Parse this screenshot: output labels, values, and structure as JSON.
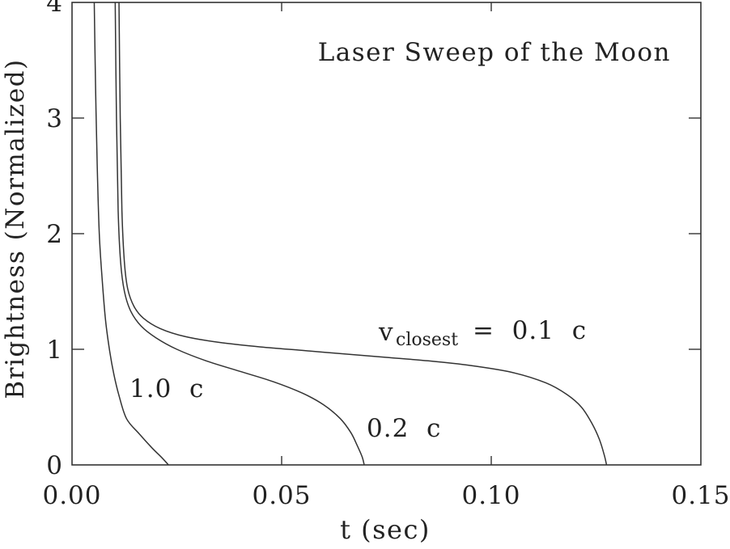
{
  "chart_data": {
    "type": "line",
    "title": "Laser Sweep of the Moon",
    "xlabel": "t (sec)",
    "ylabel": "Brightness (Normalized)",
    "xlim": [
      0,
      0.15
    ],
    "ylim": [
      0,
      4
    ],
    "xticks": [
      0.0,
      0.05,
      0.1,
      0.15
    ],
    "xtick_labels": [
      "0.00",
      "0.05",
      "0.10",
      "0.15"
    ],
    "yticks": [
      0,
      1,
      2,
      3,
      4
    ],
    "ytick_labels": [
      "0",
      "1",
      "2",
      "3",
      "4"
    ],
    "grid": false,
    "legend": "none (inline annotations)",
    "series": [
      {
        "name": "1.0 c",
        "label": "1.0 c",
        "label_pos": [
          0.0135,
          0.65
        ],
        "x": [
          0.0053,
          0.0056,
          0.006,
          0.0065,
          0.0072,
          0.008,
          0.009,
          0.01,
          0.0112,
          0.013,
          0.016,
          0.019,
          0.0215,
          0.023
        ],
        "y": [
          4.0,
          3.3,
          2.6,
          2.0,
          1.6,
          1.25,
          0.98,
          0.78,
          0.6,
          0.4,
          0.27,
          0.15,
          0.06,
          0.0
        ]
      },
      {
        "name": "0.2 c",
        "label": "0.2 c",
        "label_pos": [
          0.07,
          0.27
        ],
        "x": [
          0.0103,
          0.0106,
          0.011,
          0.0116,
          0.0125,
          0.014,
          0.0165,
          0.02,
          0.025,
          0.032,
          0.04,
          0.048,
          0.055,
          0.06,
          0.064,
          0.0665,
          0.068,
          0.0692,
          0.0697
        ],
        "y": [
          4.0,
          3.0,
          2.2,
          1.75,
          1.5,
          1.33,
          1.2,
          1.1,
          1.0,
          0.9,
          0.81,
          0.72,
          0.62,
          0.52,
          0.4,
          0.28,
          0.17,
          0.07,
          0.0
        ]
      },
      {
        "name": "0.1 c",
        "label": "v_closest = 0.1 c",
        "label_pos": [
          0.074,
          1.08
        ],
        "x": [
          0.0112,
          0.0115,
          0.0119,
          0.0125,
          0.0133,
          0.0148,
          0.017,
          0.021,
          0.027,
          0.035,
          0.045,
          0.055,
          0.065,
          0.075,
          0.085,
          0.095,
          0.105,
          0.113,
          0.118,
          0.1215,
          0.124,
          0.1258,
          0.127,
          0.1275
        ],
        "y": [
          4.0,
          3.0,
          2.2,
          1.75,
          1.52,
          1.37,
          1.27,
          1.18,
          1.11,
          1.06,
          1.02,
          0.99,
          0.96,
          0.93,
          0.9,
          0.86,
          0.8,
          0.71,
          0.61,
          0.5,
          0.36,
          0.22,
          0.08,
          0.0
        ]
      }
    ],
    "annotations": [
      {
        "text": "Laser Sweep of the Moon",
        "pos": "top-right inside frame"
      },
      {
        "text": "v",
        "subscript": "closest",
        "suffix": " = 0.1 c"
      },
      {
        "text": "0.2 c"
      },
      {
        "text": "1.0 c"
      }
    ]
  },
  "labels": {
    "title": "Laser Sweep of the Moon",
    "xlabel": "t (sec)",
    "ylabel": "Brightness (Normalized)",
    "v_main": "v",
    "v_sub": "closest",
    "v_rest": "=  0.1  c",
    "lbl_02": "0.2  c",
    "lbl_10": "1.0  c"
  }
}
